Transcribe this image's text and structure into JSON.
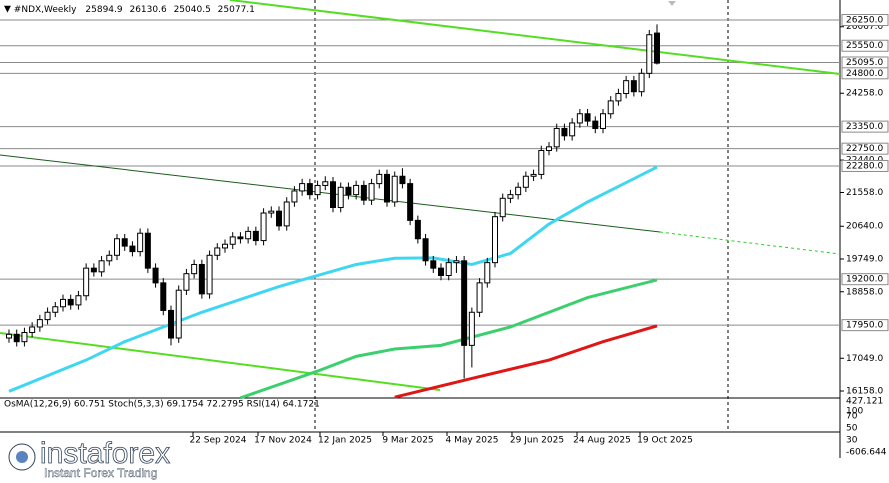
{
  "chart_data": {
    "type": "candlestick",
    "title": "#NDX,Weekly",
    "ohlc": [
      [
        17600,
        17830,
        17470,
        17700
      ],
      [
        17700,
        17830,
        17370,
        17500
      ],
      [
        17500,
        17880,
        17370,
        17750
      ],
      [
        17750,
        18030,
        17620,
        17900
      ],
      [
        17900,
        18230,
        17770,
        18100
      ],
      [
        18100,
        18430,
        17970,
        18300
      ],
      [
        18300,
        18580,
        18170,
        18450
      ],
      [
        18450,
        18780,
        18320,
        18650
      ],
      [
        18650,
        18780,
        18370,
        18500
      ],
      [
        18500,
        18880,
        18370,
        18750
      ],
      [
        18750,
        19630,
        18620,
        19500
      ],
      [
        19500,
        19630,
        19270,
        19400
      ],
      [
        19400,
        19830,
        19270,
        19700
      ],
      [
        19700,
        19980,
        19570,
        19850
      ],
      [
        19850,
        20430,
        19720,
        20300
      ],
      [
        20300,
        20430,
        19970,
        20100
      ],
      [
        20100,
        20230,
        19820,
        19950
      ],
      [
        19950,
        20580,
        19820,
        20450
      ],
      [
        20450,
        20580,
        19370,
        19500
      ],
      [
        19500,
        19630,
        18970,
        19100
      ],
      [
        19100,
        19230,
        18220,
        18350
      ],
      [
        18350,
        18480,
        17400,
        17600
      ],
      [
        17600,
        19030,
        17470,
        18900
      ],
      [
        18900,
        19480,
        18770,
        19350
      ],
      [
        19350,
        19730,
        19220,
        19600
      ],
      [
        19600,
        19730,
        18670,
        18800
      ],
      [
        18800,
        19980,
        18670,
        19850
      ],
      [
        19850,
        20180,
        19720,
        20050
      ],
      [
        20050,
        20280,
        19920,
        20150
      ],
      [
        20150,
        20480,
        20020,
        20350
      ],
      [
        20350,
        20480,
        20170,
        20300
      ],
      [
        20300,
        20630,
        20170,
        20500
      ],
      [
        20500,
        20630,
        20120,
        20250
      ],
      [
        20250,
        21130,
        20120,
        21000
      ],
      [
        21000,
        21180,
        20870,
        21050
      ],
      [
        21050,
        21180,
        20520,
        20650
      ],
      [
        20650,
        21430,
        20520,
        21300
      ],
      [
        21300,
        21730,
        21170,
        21600
      ],
      [
        21600,
        21930,
        21470,
        21800
      ],
      [
        21800,
        21930,
        21370,
        21500
      ],
      [
        21500,
        21880,
        21370,
        21750
      ],
      [
        21750,
        22000,
        21620,
        21850
      ],
      [
        21850,
        21980,
        21020,
        21150
      ],
      [
        21150,
        21830,
        21020,
        21700
      ],
      [
        21700,
        21830,
        21370,
        21500
      ],
      [
        21500,
        21880,
        21370,
        21750
      ],
      [
        21750,
        21880,
        21220,
        21350
      ],
      [
        21350,
        21930,
        21220,
        21800
      ],
      [
        21800,
        22180,
        21670,
        22050
      ],
      [
        22050,
        22180,
        21170,
        21300
      ],
      [
        21300,
        22130,
        21170,
        22000
      ],
      [
        22000,
        22220,
        21670,
        21800
      ],
      [
        21800,
        21930,
        20670,
        20800
      ],
      [
        20800,
        20930,
        20170,
        20300
      ],
      [
        20300,
        20430,
        19570,
        19700
      ],
      [
        19700,
        19830,
        19370,
        19500
      ],
      [
        19500,
        19630,
        19170,
        19300
      ],
      [
        19300,
        19780,
        19170,
        19650
      ],
      [
        19650,
        19830,
        19370,
        19700
      ],
      [
        19700,
        19830,
        16500,
        17400
      ],
      [
        17400,
        18430,
        16800,
        18300
      ],
      [
        18300,
        19230,
        18170,
        19100
      ],
      [
        19100,
        19780,
        18970,
        19650
      ],
      [
        19650,
        21030,
        19520,
        20900
      ],
      [
        20900,
        21530,
        20770,
        21400
      ],
      [
        21400,
        21630,
        21270,
        21500
      ],
      [
        21500,
        21830,
        21370,
        21700
      ],
      [
        21700,
        22130,
        21570,
        22000
      ],
      [
        22000,
        22180,
        21870,
        22050
      ],
      [
        22050,
        22830,
        21920,
        22700
      ],
      [
        22700,
        22930,
        22570,
        22800
      ],
      [
        22800,
        23430,
        22670,
        23300
      ],
      [
        23300,
        23430,
        22970,
        23100
      ],
      [
        23100,
        23580,
        22970,
        23450
      ],
      [
        23450,
        23830,
        23320,
        23700
      ],
      [
        23700,
        23830,
        23370,
        23500
      ],
      [
        23500,
        23630,
        23170,
        23300
      ],
      [
        23300,
        23830,
        23170,
        23700
      ],
      [
        23700,
        24180,
        23570,
        24050
      ],
      [
        24050,
        24380,
        23920,
        24250
      ],
      [
        24250,
        24730,
        24120,
        24600
      ],
      [
        24600,
        24730,
        24170,
        24300
      ],
      [
        24300,
        24930,
        24170,
        24800
      ],
      [
        24800,
        25980,
        24670,
        25850
      ],
      [
        25894.9,
        26130.6,
        25040.5,
        25077.1
      ]
    ],
    "ma": [
      {
        "color": "#3fd6f2",
        "x": [
          0,
          10,
          15,
          25,
          35,
          45,
          50,
          55,
          60,
          65,
          70,
          75,
          84
        ],
        "values": [
          16150,
          17000,
          17500,
          18300,
          19000,
          19600,
          19770,
          19780,
          19600,
          19900,
          20700,
          21300,
          22250
        ]
      },
      {
        "color": "#3ccf6e",
        "x": [
          30,
          40,
          45,
          50,
          56,
          65,
          75,
          84
        ],
        "values": [
          15970,
          16700,
          17100,
          17300,
          17400,
          17900,
          18700,
          19180
        ]
      },
      {
        "color": "#e01515",
        "x": [
          50,
          60,
          70,
          77,
          84
        ],
        "values": [
          15990,
          16500,
          17000,
          17500,
          17930
        ]
      }
    ],
    "ylim": [
      15968,
      26740
    ],
    "yticks": [
      {
        "value": 26067,
        "label": "26067.0"
      },
      {
        "value": 24258,
        "label": "24258.0"
      },
      {
        "value": 22440,
        "label": "22440.0"
      },
      {
        "value": 21558,
        "label": "21558.0"
      },
      {
        "value": 20640,
        "label": "20640.0"
      },
      {
        "value": 19749,
        "label": "19749.0"
      },
      {
        "value": 18858,
        "label": "18858.0"
      },
      {
        "value": 17049,
        "label": "17049.0"
      },
      {
        "value": 16158,
        "label": "16158.0"
      }
    ],
    "levels": [
      {
        "value": 26250,
        "label": "26250.0"
      },
      {
        "value": 25550,
        "label": "25550.0"
      },
      {
        "value": 25095,
        "label": "25095.0"
      },
      {
        "value": 24800,
        "label": "24800.0"
      },
      {
        "value": 23350,
        "label": "23350.0"
      },
      {
        "value": 22750,
        "label": "22750.0"
      },
      {
        "value": 22280,
        "label": "22280.0"
      },
      {
        "value": 19200,
        "label": "19200.0"
      },
      {
        "value": 17950,
        "label": "17950.0"
      }
    ],
    "x_labels": [
      "22 Sep 2024",
      "17 Nov 2024",
      "12 Jan 2025",
      "9 Mar 2025",
      "4 May 2025",
      "29 Jun 2025",
      "24 Aug 2025",
      "19 Oct 2025"
    ],
    "indicator": {
      "title": "OsMA(12,26,9) 60.751  Stoch(5,3,3) 69.1754 72.2795  RSI(14) 64.1721",
      "scale_labels": [
        "427.121",
        "100",
        "70",
        "50",
        "30",
        "-606.644"
      ]
    },
    "logo": {
      "name": "instaforex",
      "tagline": "Instant Forex Trading"
    }
  }
}
